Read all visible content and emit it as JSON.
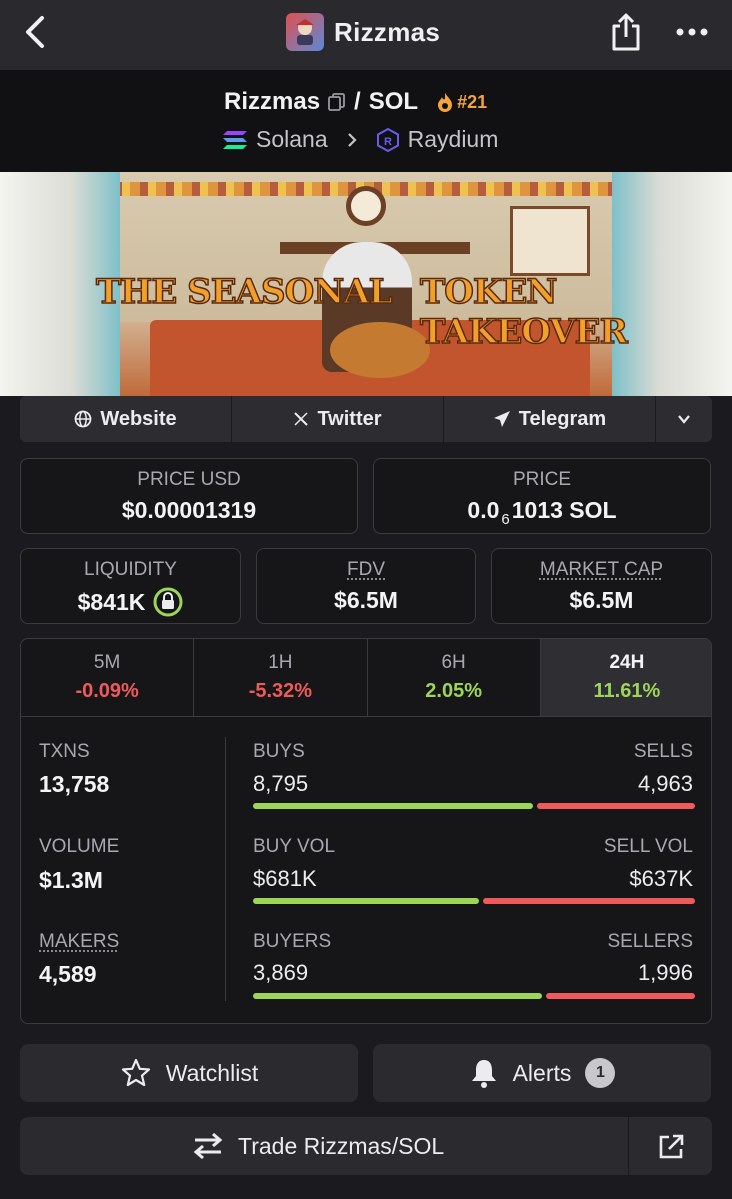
{
  "nav": {
    "title": "Rizzmas"
  },
  "pair": {
    "base": "Rizzmas",
    "sep": "/",
    "quote": "SOL",
    "rank": "#21",
    "chain": "Solana",
    "dex": "Raydium"
  },
  "banner": {
    "text_left": "THE SEASONAL",
    "text_right": "TOKEN TAKEOVER"
  },
  "links": {
    "website": "Website",
    "twitter": "Twitter",
    "telegram": "Telegram"
  },
  "price": {
    "usd_label": "PRICE USD",
    "usd_value": "$0.00001319",
    "sol_label": "PRICE",
    "sol_prefix": "0.0",
    "sol_zeros": "6",
    "sol_suffix": "1013 SOL"
  },
  "stats": {
    "liquidity_label": "LIQUIDITY",
    "liquidity_value": "$841K",
    "fdv_label": "FDV",
    "fdv_value": "$6.5M",
    "mcap_label": "MARKET CAP",
    "mcap_value": "$6.5M"
  },
  "timeframes": [
    {
      "name": "5M",
      "change": "-0.09%"
    },
    {
      "name": "1H",
      "change": "-5.32%"
    },
    {
      "name": "6H",
      "change": "2.05%"
    },
    {
      "name": "24H",
      "change": "11.61%"
    }
  ],
  "txns": {
    "txns_label": "TXNS",
    "txns_value": "13,758",
    "volume_label": "VOLUME",
    "volume_value": "$1.3M",
    "makers_label": "MAKERS",
    "makers_value": "4,589",
    "buys_label": "BUYS",
    "buys_value": "8,795",
    "sells_label": "SELLS",
    "sells_value": "4,963",
    "buys_ratio": 0.639,
    "buyvol_label": "BUY VOL",
    "buyvol_value": "$681K",
    "sellvol_label": "SELL VOL",
    "sellvol_value": "$637K",
    "buyvol_ratio": 0.517,
    "buyers_label": "BUYERS",
    "buyers_value": "3,869",
    "sellers_label": "SELLERS",
    "sellers_value": "1,996",
    "buyers_ratio": 0.66
  },
  "actions": {
    "watchlist": "Watchlist",
    "alerts": "Alerts",
    "alerts_count": "1",
    "trade": "Trade Rizzmas/SOL"
  },
  "colors": {
    "positive": "#9dd45a",
    "negative": "#ef5a5a",
    "rank": "#f4a43a"
  }
}
